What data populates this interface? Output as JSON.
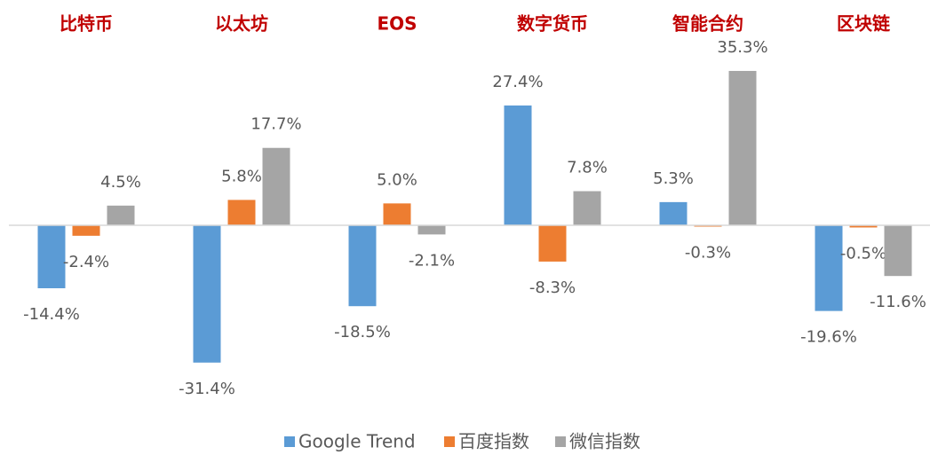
{
  "chart_data": {
    "type": "bar",
    "categories": [
      "比特币",
      "以太坊",
      "EOS",
      "数字货币",
      "智能合约",
      "区块链"
    ],
    "series": [
      {
        "name": "Google Trend",
        "color": "#5b9bd5",
        "values": [
          -14.4,
          -31.4,
          -18.5,
          27.4,
          5.3,
          -19.6
        ],
        "value_labels": [
          "-14.4%",
          "-31.4%",
          "-18.5%",
          "27.4%",
          "5.3%",
          "-19.6%"
        ]
      },
      {
        "name": "百度指数",
        "color": "#ed7d31",
        "values": [
          -2.4,
          5.8,
          5.0,
          -8.3,
          -0.3,
          -0.5
        ],
        "value_labels": [
          "-2.4%",
          "5.8%",
          "5.0%",
          "-8.3%",
          "-0.3%",
          "-0.5%"
        ]
      },
      {
        "name": "微信指数",
        "color": "#a5a5a5",
        "values": [
          4.5,
          17.7,
          -2.1,
          7.8,
          35.3,
          -11.6
        ],
        "value_labels": [
          "4.5%",
          "17.7%",
          "-2.1%",
          "7.8%",
          "35.3%",
          "-11.6%"
        ]
      }
    ]
  }
}
